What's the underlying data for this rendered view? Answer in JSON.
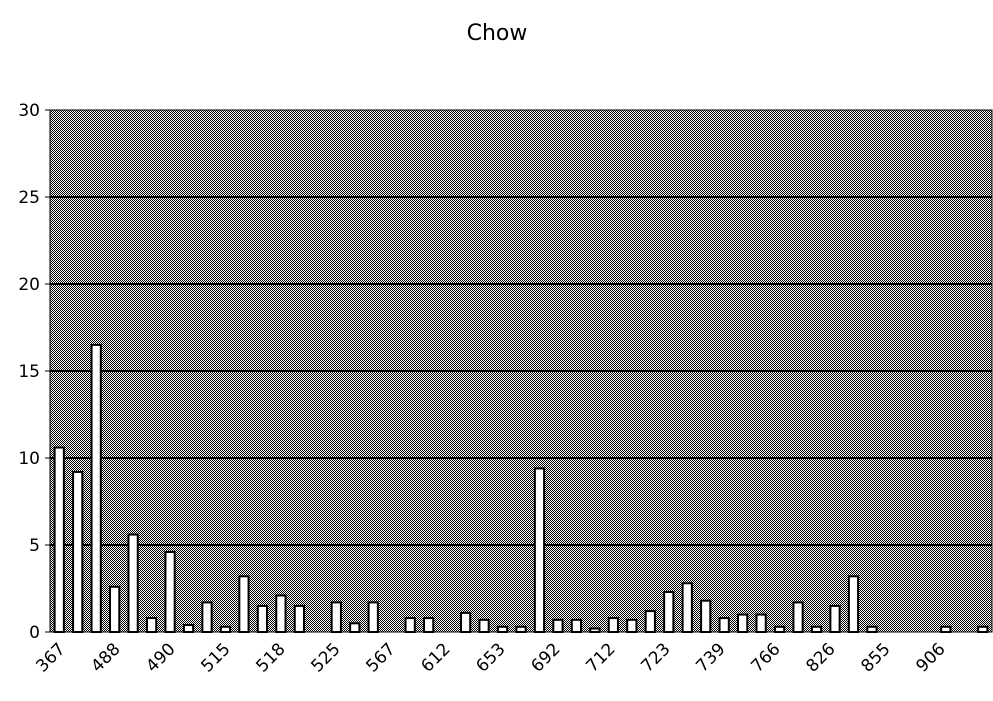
{
  "chart_data": {
    "type": "bar",
    "title": "Chow",
    "xlabel": "",
    "ylabel": "",
    "ylim": [
      0,
      30
    ],
    "yticks": [
      0,
      5,
      10,
      15,
      20,
      25,
      30
    ],
    "grid": true,
    "legend": "none",
    "colors": {
      "plot_bg": "#bdbdbd",
      "bar_fill": "#ffffff",
      "bar_stroke": "#000000",
      "grid": "#000000"
    },
    "x_tick_labels": [
      "367",
      "488",
      "490",
      "515",
      "518",
      "525",
      "567",
      "612",
      "653",
      "692",
      "712",
      "723",
      "739",
      "766",
      "826",
      "855",
      "906"
    ],
    "values": [
      10.6,
      9.2,
      16.5,
      2.6,
      5.6,
      0.8,
      4.6,
      0.4,
      1.7,
      0.3,
      3.2,
      1.5,
      2.1,
      1.5,
      0,
      1.7,
      0.5,
      1.7,
      0,
      0.8,
      0.8,
      0,
      1.1,
      0.7,
      0.3,
      0.3,
      9.4,
      0.7,
      0.7,
      0.2,
      0.8,
      0.7,
      1.2,
      2.3,
      2.8,
      1.8,
      0.8,
      1.0,
      1.0,
      0.3,
      1.7,
      0.3,
      1.5,
      3.2,
      0.3,
      0,
      0,
      0,
      0.3,
      0,
      0.3
    ]
  }
}
